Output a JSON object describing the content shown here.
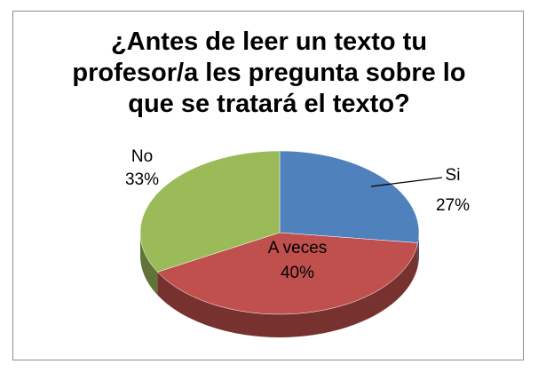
{
  "chart_data": {
    "type": "pie",
    "title": "¿Antes de leer un texto tu profesor/a les pregunta sobre lo que se tratará el texto?",
    "categories": [
      "Si",
      "A veces",
      "No"
    ],
    "values": [
      27,
      40,
      33
    ],
    "value_labels": [
      "27%",
      "40%",
      "33%"
    ],
    "colors": [
      "#4f81bd",
      "#c0504d",
      "#9bbb59"
    ]
  }
}
